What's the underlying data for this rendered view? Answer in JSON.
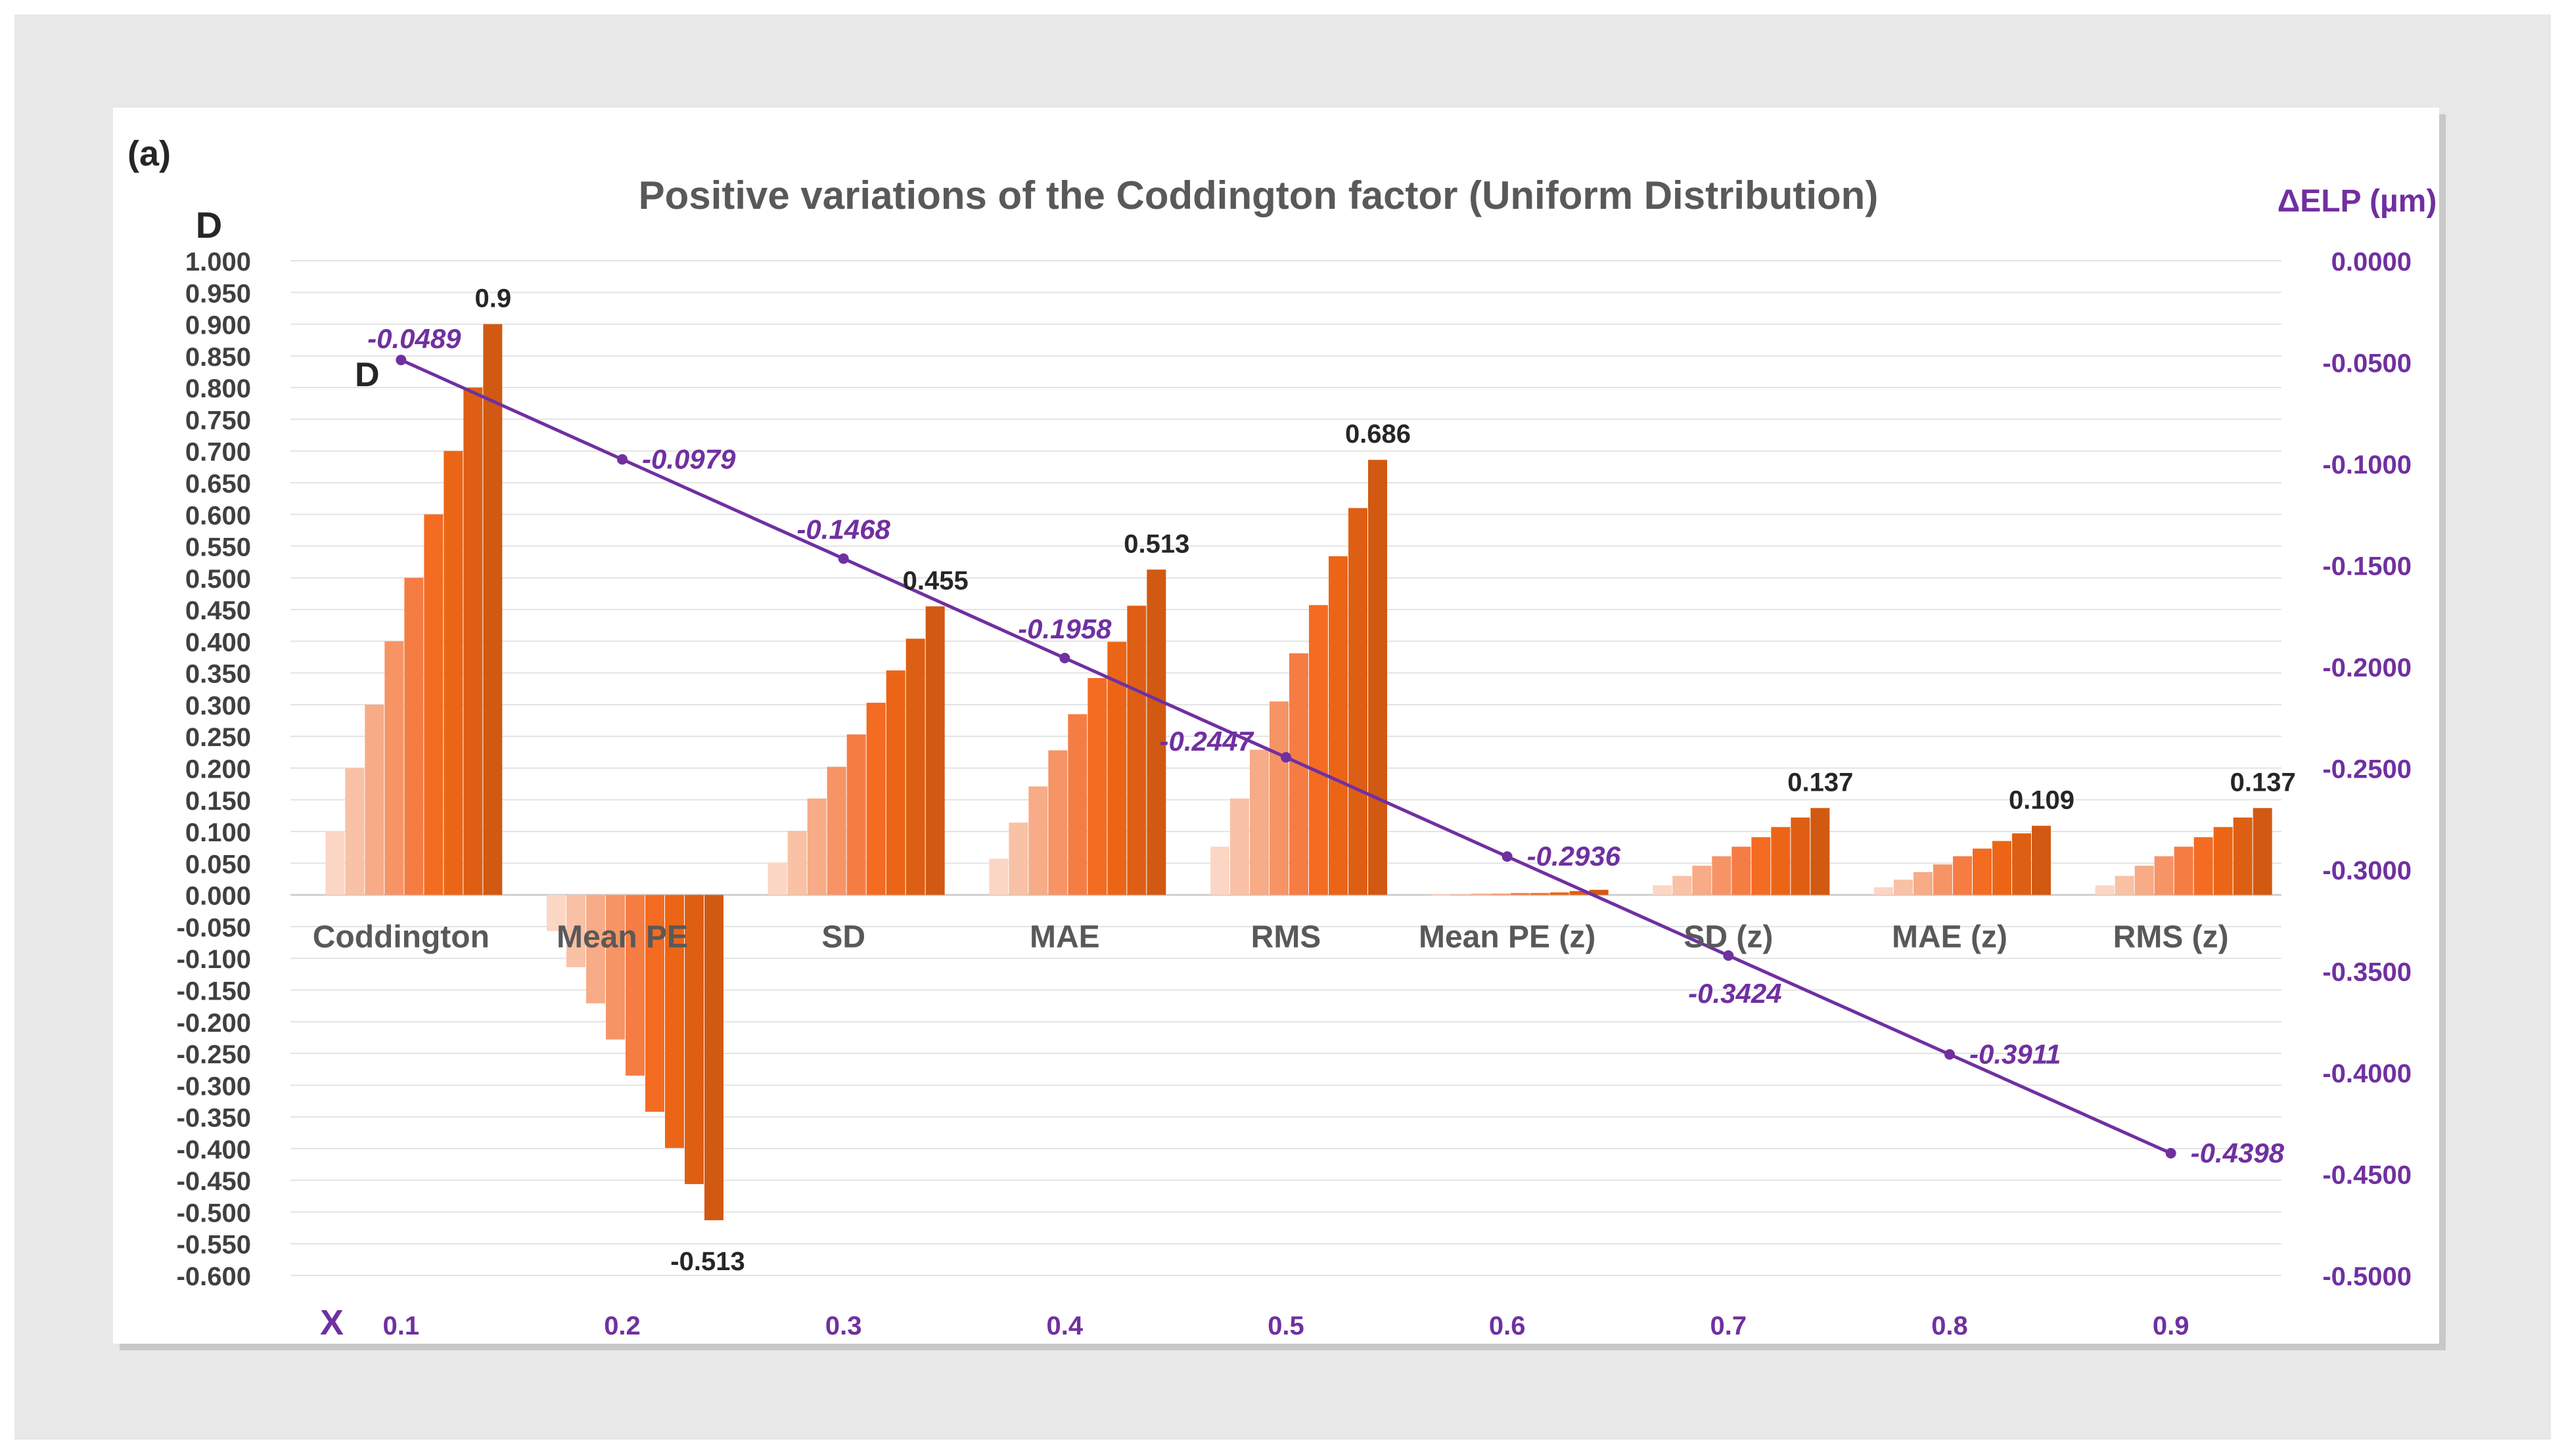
{
  "chart_data": {
    "type": "bar",
    "panel_label": "(a)",
    "title": "Positive variations of the Coddington factor (Uniform Distribution)",
    "ylabel": "D",
    "ylabel_right": "ΔELP (µm)",
    "xlabel": "X",
    "ylim": [
      -0.6,
      1.0
    ],
    "ylim_right": [
      -0.5,
      0.0
    ],
    "y_ticks": [
      "1.000",
      "0.950",
      "0.900",
      "0.850",
      "0.800",
      "0.750",
      "0.700",
      "0.650",
      "0.600",
      "0.550",
      "0.500",
      "0.450",
      "0.400",
      "0.350",
      "0.300",
      "0.250",
      "0.200",
      "0.150",
      "0.100",
      "0.050",
      "0.000",
      "-0.050",
      "-0.100",
      "-0.150",
      "-0.200",
      "-0.250",
      "-0.300",
      "-0.350",
      "-0.400",
      "-0.450",
      "-0.500",
      "-0.550",
      "-0.600"
    ],
    "y_right_ticks": [
      "0.0000",
      "-0.0500",
      "-0.1000",
      "-0.1500",
      "-0.2000",
      "-0.2500",
      "-0.3000",
      "-0.3500",
      "-0.4000",
      "-0.4500",
      "-0.5000"
    ],
    "categories": [
      "Coddington",
      "Mean PE",
      "SD",
      "MAE",
      "RMS",
      "Mean PE (z)",
      "SD (z)",
      "MAE (z)",
      "RMS (z)"
    ],
    "x_ticks": [
      "0.1",
      "0.2",
      "0.3",
      "0.4",
      "0.5",
      "0.6",
      "0.7",
      "0.8",
      "0.9"
    ],
    "bar_groups": [
      {
        "name": "Coddington",
        "values": [
          0.1,
          0.2,
          0.3,
          0.4,
          0.5,
          0.6,
          0.7,
          0.8,
          0.9
        ],
        "label": "0.9"
      },
      {
        "name": "Mean PE",
        "values": [
          -0.057,
          -0.114,
          -0.171,
          -0.228,
          -0.285,
          -0.342,
          -0.399,
          -0.456,
          -0.513
        ],
        "label": "-0.513"
      },
      {
        "name": "SD",
        "values": [
          0.051,
          0.101,
          0.152,
          0.202,
          0.253,
          0.303,
          0.354,
          0.404,
          0.455
        ],
        "label": "0.455"
      },
      {
        "name": "MAE",
        "values": [
          0.057,
          0.114,
          0.171,
          0.228,
          0.285,
          0.342,
          0.399,
          0.456,
          0.513
        ],
        "label": "0.513"
      },
      {
        "name": "RMS",
        "values": [
          0.076,
          0.152,
          0.229,
          0.305,
          0.381,
          0.457,
          0.534,
          0.61,
          0.686
        ],
        "label": "0.686"
      },
      {
        "name": "Mean PE (z)",
        "values": [
          0.001,
          0.001,
          0.002,
          0.002,
          0.003,
          0.003,
          0.004,
          0.006,
          0.008
        ],
        "label": ""
      },
      {
        "name": "SD (z)",
        "values": [
          0.015,
          0.03,
          0.046,
          0.061,
          0.076,
          0.091,
          0.107,
          0.122,
          0.137
        ],
        "label": "0.137"
      },
      {
        "name": "MAE (z)",
        "values": [
          0.012,
          0.024,
          0.036,
          0.048,
          0.061,
          0.073,
          0.085,
          0.097,
          0.109
        ],
        "label": "0.109"
      },
      {
        "name": "RMS (z)",
        "values": [
          0.015,
          0.03,
          0.046,
          0.061,
          0.076,
          0.091,
          0.107,
          0.122,
          0.137
        ],
        "label": "0.137"
      }
    ],
    "bar_colors": [
      "#fbd6c4",
      "#f9c1a5",
      "#f7ab86",
      "#f69466",
      "#f57d44",
      "#f46b22",
      "#ec6516",
      "#de5f14",
      "#d25912"
    ],
    "line_series": {
      "name": "ΔELP",
      "x": [
        0.1,
        0.2,
        0.3,
        0.4,
        0.5,
        0.6,
        0.7,
        0.8,
        0.9
      ],
      "values": [
        -0.0489,
        -0.0979,
        -0.1468,
        -0.1958,
        -0.2447,
        -0.2936,
        -0.3424,
        -0.3911,
        -0.4398
      ],
      "labels": [
        "-0.0489",
        "-0.0979",
        "-0.1468",
        "-0.1958",
        "-0.2447",
        "-0.2936",
        "-0.3424",
        "-0.3911",
        "-0.4398"
      ],
      "color": "#7030a0"
    },
    "annotation": "D",
    "grid": true,
    "accent_color": "#7030a0"
  }
}
